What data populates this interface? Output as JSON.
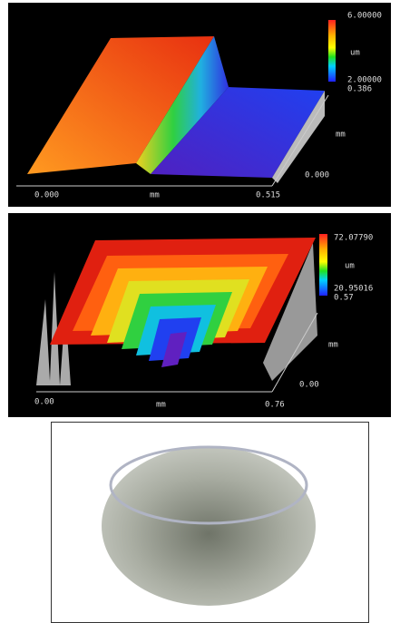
{
  "panel_1": {
    "scale_max": "6.00000",
    "scale_unit": "um",
    "scale_min": "2.00000",
    "y_max": "0.386",
    "y_unit": "mm",
    "y_min": "0.000",
    "x_min": "0.000",
    "x_unit": "mm",
    "x_max": "0.515"
  },
  "panel_2": {
    "scale_max": "72.07790",
    "scale_unit": "um",
    "scale_min": "20.95016",
    "y_max": "0.57",
    "y_unit": "mm",
    "y_min": "0.00",
    "x_min": "0.00",
    "x_unit": "mm",
    "x_max": "0.76"
  }
}
